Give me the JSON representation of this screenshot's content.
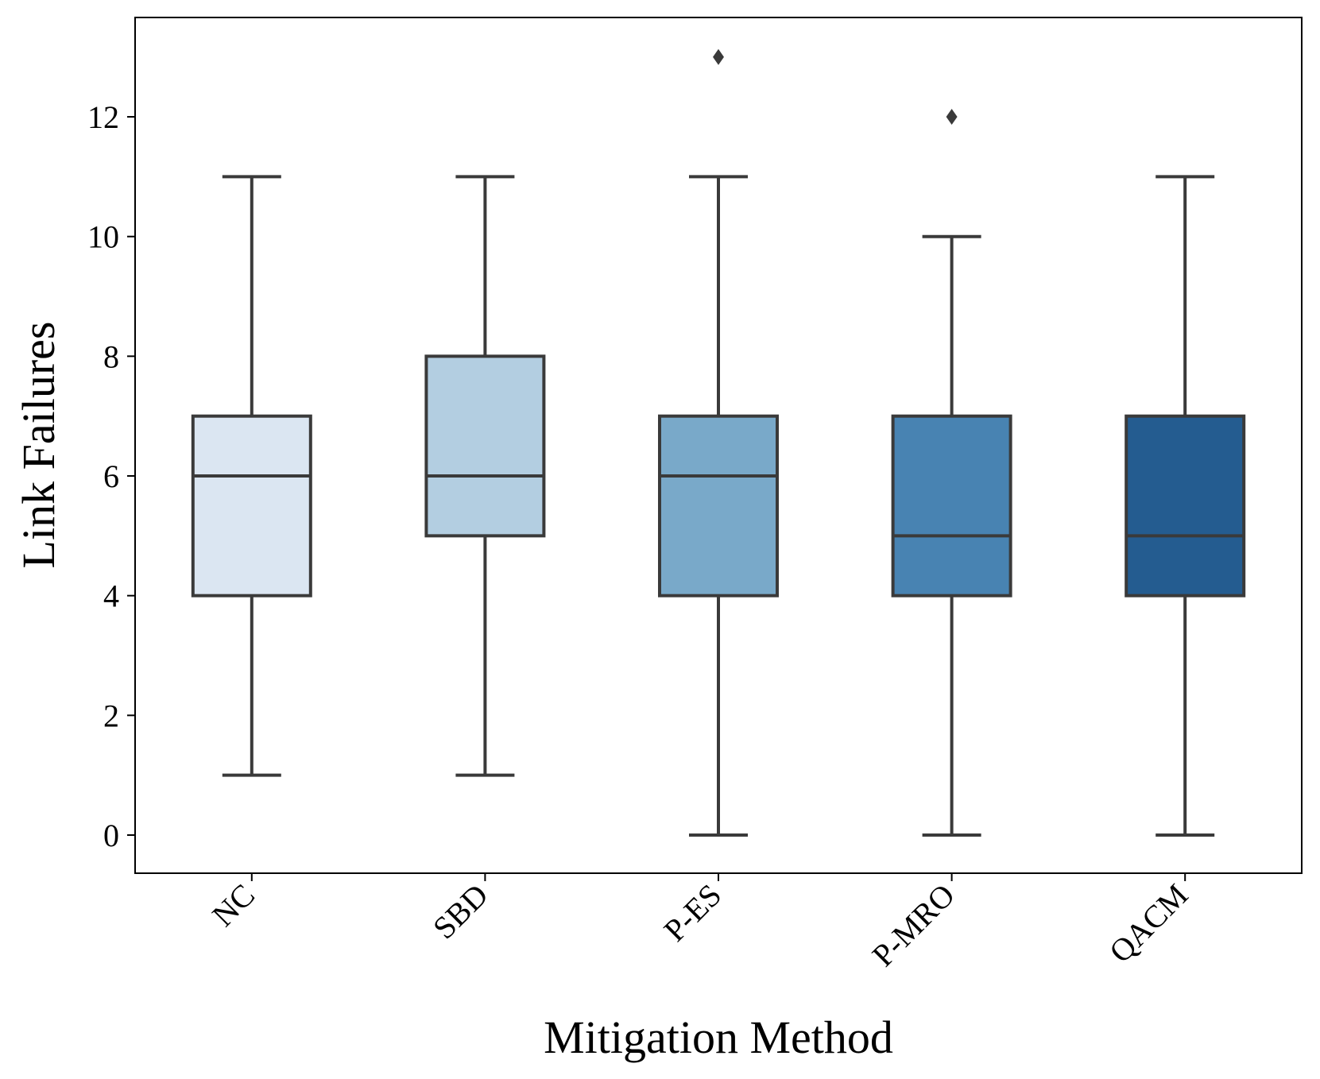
{
  "chart_data": {
    "type": "box",
    "title": "",
    "xlabel": "Mitigation Method",
    "ylabel": "Link Failures",
    "ylim": [
      -0.65,
      13.7
    ],
    "yticks": [
      0,
      2,
      4,
      6,
      8,
      10,
      12
    ],
    "yticklabels": [
      "0",
      "2",
      "4",
      "6",
      "8",
      "10",
      "12"
    ],
    "grid": false,
    "legend": "none",
    "categories": [
      "NC",
      "SBD",
      "P-ES",
      "P-MRO",
      "QACM"
    ],
    "boxes": [
      {
        "category": "NC",
        "whisker_low": 1,
        "q1": 4,
        "median": 6,
        "q3": 7,
        "whisker_high": 11,
        "outliers": [],
        "color": "#dbe6f2"
      },
      {
        "category": "SBD",
        "whisker_low": 1,
        "q1": 5,
        "median": 6,
        "q3": 8,
        "whisker_high": 11,
        "outliers": [],
        "color": "#b3cee1"
      },
      {
        "category": "P-ES",
        "whisker_low": 0,
        "q1": 4,
        "median": 6,
        "q3": 7,
        "whisker_high": 11,
        "outliers": [
          13
        ],
        "color": "#79a9c9"
      },
      {
        "category": "P-MRO",
        "whisker_low": 0,
        "q1": 4,
        "median": 5,
        "q3": 7,
        "whisker_high": 10,
        "outliers": [
          12
        ],
        "color": "#4883b2"
      },
      {
        "category": "QACM",
        "whisker_low": 0,
        "q1": 4,
        "median": 5,
        "q3": 7,
        "whisker_high": 11,
        "outliers": [],
        "color": "#245c90"
      }
    ],
    "line_color": "#3a3a3a",
    "axis_color": "#000000"
  }
}
